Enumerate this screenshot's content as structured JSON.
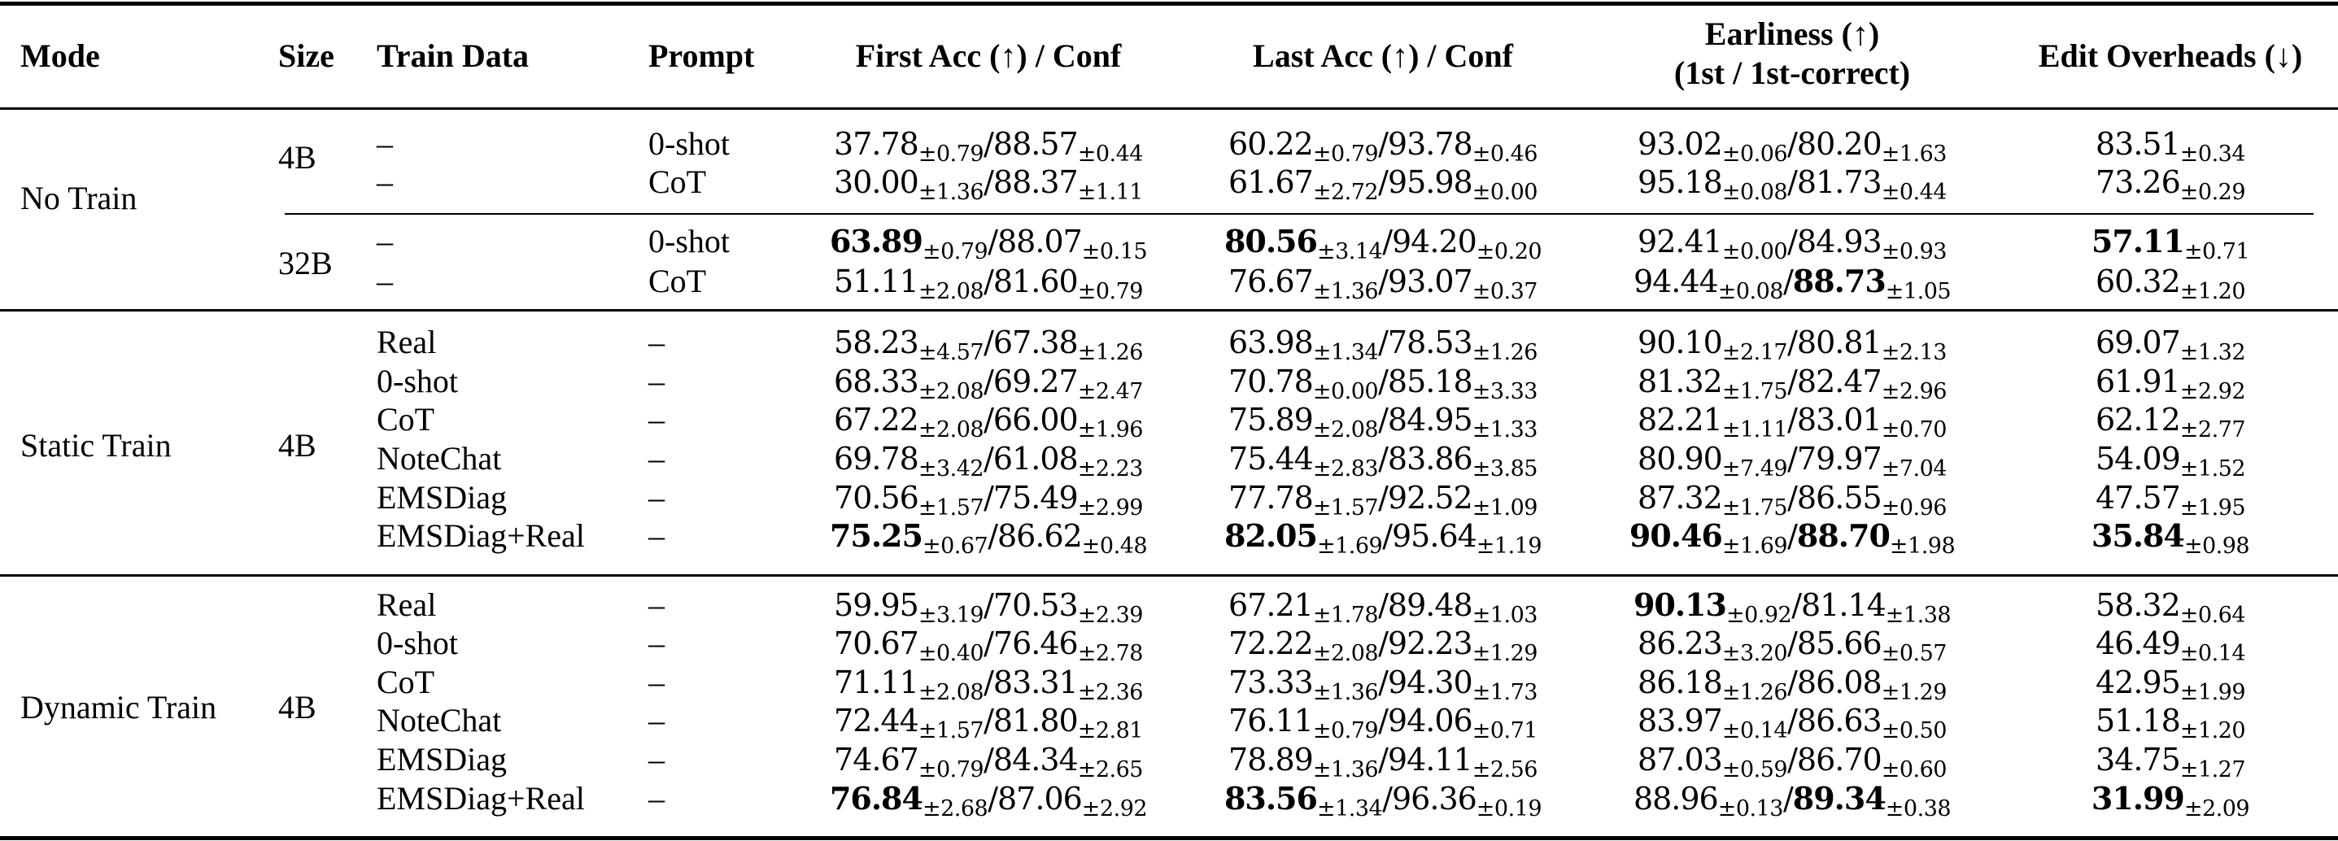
{
  "table": {
    "headers": {
      "mode": "Mode",
      "size": "Size",
      "train_data": "Train Data",
      "prompt": "Prompt",
      "first_acc": "First Acc (↑) / Conf",
      "last_acc": "Last Acc (↑) / Conf",
      "earliness_line1": "Earliness (↑)",
      "earliness_line2": "(1st / 1st-correct)",
      "edit_overheads": "Edit Overheads (↓)"
    },
    "groups": [
      {
        "mode": "No Train",
        "sizes": [
          "4B",
          "32B"
        ]
      },
      {
        "mode": "Static Train",
        "sizes": [
          "4B"
        ]
      },
      {
        "mode": "Dynamic Train",
        "sizes": [
          "4B"
        ]
      }
    ],
    "rows": [
      {
        "group": "No Train",
        "size": "4B",
        "train_data": "–",
        "prompt": "0-shot",
        "first_acc": {
          "v": "37.78",
          "s": "±0.79",
          "bold": false
        },
        "first_conf": {
          "v": "88.57",
          "s": "±0.44",
          "bold": false
        },
        "last_acc": {
          "v": "60.22",
          "s": "±0.79",
          "bold": false
        },
        "last_conf": {
          "v": "93.78",
          "s": "±0.46",
          "bold": false
        },
        "early_1st": {
          "v": "93.02",
          "s": "±0.06",
          "bold": false
        },
        "early_1st_correct": {
          "v": "80.20",
          "s": "±1.63",
          "bold": false
        },
        "edit": {
          "v": "83.51",
          "s": "±0.34",
          "bold": false
        }
      },
      {
        "group": "No Train",
        "size": "4B",
        "train_data": "–",
        "prompt": "CoT",
        "first_acc": {
          "v": "30.00",
          "s": "±1.36",
          "bold": false
        },
        "first_conf": {
          "v": "88.37",
          "s": "±1.11",
          "bold": false
        },
        "last_acc": {
          "v": "61.67",
          "s": "±2.72",
          "bold": false
        },
        "last_conf": {
          "v": "95.98",
          "s": "±0.00",
          "bold": false
        },
        "early_1st": {
          "v": "95.18",
          "s": "±0.08",
          "bold": false
        },
        "early_1st_correct": {
          "v": "81.73",
          "s": "±0.44",
          "bold": false
        },
        "edit": {
          "v": "73.26",
          "s": "±0.29",
          "bold": false
        }
      },
      {
        "group": "No Train",
        "size": "32B",
        "train_data": "–",
        "prompt": "0-shot",
        "first_acc": {
          "v": "63.89",
          "s": "±0.79",
          "bold": true
        },
        "first_conf": {
          "v": "88.07",
          "s": "±0.15",
          "bold": false
        },
        "last_acc": {
          "v": "80.56",
          "s": "±3.14",
          "bold": true
        },
        "last_conf": {
          "v": "94.20",
          "s": "±0.20",
          "bold": false
        },
        "early_1st": {
          "v": "92.41",
          "s": "±0.00",
          "bold": false
        },
        "early_1st_correct": {
          "v": "84.93",
          "s": "±0.93",
          "bold": false
        },
        "edit": {
          "v": "57.11",
          "s": "±0.71",
          "bold": true
        }
      },
      {
        "group": "No Train",
        "size": "32B",
        "train_data": "–",
        "prompt": "CoT",
        "first_acc": {
          "v": "51.11",
          "s": "±2.08",
          "bold": false
        },
        "first_conf": {
          "v": "81.60",
          "s": "±0.79",
          "bold": false
        },
        "last_acc": {
          "v": "76.67",
          "s": "±1.36",
          "bold": false
        },
        "last_conf": {
          "v": "93.07",
          "s": "±0.37",
          "bold": false
        },
        "early_1st": {
          "v": "94.44",
          "s": "±0.08",
          "bold": false
        },
        "early_1st_correct": {
          "v": "88.73",
          "s": "±1.05",
          "bold": true
        },
        "edit": {
          "v": "60.32",
          "s": "±1.20",
          "bold": false
        }
      },
      {
        "group": "Static Train",
        "size": "4B",
        "train_data": "Real",
        "prompt": "–",
        "first_acc": {
          "v": "58.23",
          "s": "±4.57",
          "bold": false
        },
        "first_conf": {
          "v": "67.38",
          "s": "±1.26",
          "bold": false
        },
        "last_acc": {
          "v": "63.98",
          "s": "±1.34",
          "bold": false
        },
        "last_conf": {
          "v": "78.53",
          "s": "±1.26",
          "bold": false
        },
        "early_1st": {
          "v": "90.10",
          "s": "±2.17",
          "bold": false
        },
        "early_1st_correct": {
          "v": "80.81",
          "s": "±2.13",
          "bold": false
        },
        "edit": {
          "v": "69.07",
          "s": "±1.32",
          "bold": false
        }
      },
      {
        "group": "Static Train",
        "size": "4B",
        "train_data": "0-shot",
        "prompt": "–",
        "first_acc": {
          "v": "68.33",
          "s": "±2.08",
          "bold": false
        },
        "first_conf": {
          "v": "69.27",
          "s": "±2.47",
          "bold": false
        },
        "last_acc": {
          "v": "70.78",
          "s": "±0.00",
          "bold": false
        },
        "last_conf": {
          "v": "85.18",
          "s": "±3.33",
          "bold": false
        },
        "early_1st": {
          "v": "81.32",
          "s": "±1.75",
          "bold": false
        },
        "early_1st_correct": {
          "v": "82.47",
          "s": "±2.96",
          "bold": false
        },
        "edit": {
          "v": "61.91",
          "s": "±2.92",
          "bold": false
        }
      },
      {
        "group": "Static Train",
        "size": "4B",
        "train_data": "CoT",
        "prompt": "–",
        "first_acc": {
          "v": "67.22",
          "s": "±2.08",
          "bold": false
        },
        "first_conf": {
          "v": "66.00",
          "s": "±1.96",
          "bold": false
        },
        "last_acc": {
          "v": "75.89",
          "s": "±2.08",
          "bold": false
        },
        "last_conf": {
          "v": "84.95",
          "s": "±1.33",
          "bold": false
        },
        "early_1st": {
          "v": "82.21",
          "s": "±1.11",
          "bold": false
        },
        "early_1st_correct": {
          "v": "83.01",
          "s": "±0.70",
          "bold": false
        },
        "edit": {
          "v": "62.12",
          "s": "±2.77",
          "bold": false
        }
      },
      {
        "group": "Static Train",
        "size": "4B",
        "train_data": "NoteChat",
        "prompt": "–",
        "first_acc": {
          "v": "69.78",
          "s": "±3.42",
          "bold": false
        },
        "first_conf": {
          "v": "61.08",
          "s": "±2.23",
          "bold": false
        },
        "last_acc": {
          "v": "75.44",
          "s": "±2.83",
          "bold": false
        },
        "last_conf": {
          "v": "83.86",
          "s": "±3.85",
          "bold": false
        },
        "early_1st": {
          "v": "80.90",
          "s": "±7.49",
          "bold": false
        },
        "early_1st_correct": {
          "v": "79.97",
          "s": "±7.04",
          "bold": false
        },
        "edit": {
          "v": "54.09",
          "s": "±1.52",
          "bold": false
        }
      },
      {
        "group": "Static Train",
        "size": "4B",
        "train_data": "EMSDiag",
        "prompt": "–",
        "first_acc": {
          "v": "70.56",
          "s": "±1.57",
          "bold": false
        },
        "first_conf": {
          "v": "75.49",
          "s": "±2.99",
          "bold": false
        },
        "last_acc": {
          "v": "77.78",
          "s": "±1.57",
          "bold": false
        },
        "last_conf": {
          "v": "92.52",
          "s": "±1.09",
          "bold": false
        },
        "early_1st": {
          "v": "87.32",
          "s": "±1.75",
          "bold": false
        },
        "early_1st_correct": {
          "v": "86.55",
          "s": "±0.96",
          "bold": false
        },
        "edit": {
          "v": "47.57",
          "s": "±1.95",
          "bold": false
        }
      },
      {
        "group": "Static Train",
        "size": "4B",
        "train_data": "EMSDiag+Real",
        "prompt": "–",
        "first_acc": {
          "v": "75.25",
          "s": "±0.67",
          "bold": true
        },
        "first_conf": {
          "v": "86.62",
          "s": "±0.48",
          "bold": false
        },
        "last_acc": {
          "v": "82.05",
          "s": "±1.69",
          "bold": true
        },
        "last_conf": {
          "v": "95.64",
          "s": "±1.19",
          "bold": false
        },
        "early_1st": {
          "v": "90.46",
          "s": "±1.69",
          "bold": true
        },
        "early_1st_correct": {
          "v": "88.70",
          "s": "±1.98",
          "bold": true
        },
        "edit": {
          "v": "35.84",
          "s": "±0.98",
          "bold": true
        }
      },
      {
        "group": "Dynamic Train",
        "size": "4B",
        "train_data": "Real",
        "prompt": "–",
        "first_acc": {
          "v": "59.95",
          "s": "±3.19",
          "bold": false
        },
        "first_conf": {
          "v": "70.53",
          "s": "±2.39",
          "bold": false
        },
        "last_acc": {
          "v": "67.21",
          "s": "±1.78",
          "bold": false
        },
        "last_conf": {
          "v": "89.48",
          "s": "±1.03",
          "bold": false
        },
        "early_1st": {
          "v": "90.13",
          "s": "±0.92",
          "bold": true
        },
        "early_1st_correct": {
          "v": "81.14",
          "s": "±1.38",
          "bold": false
        },
        "edit": {
          "v": "58.32",
          "s": "±0.64",
          "bold": false
        }
      },
      {
        "group": "Dynamic Train",
        "size": "4B",
        "train_data": "0-shot",
        "prompt": "–",
        "first_acc": {
          "v": "70.67",
          "s": "±0.40",
          "bold": false
        },
        "first_conf": {
          "v": "76.46",
          "s": "±2.78",
          "bold": false
        },
        "last_acc": {
          "v": "72.22",
          "s": "±2.08",
          "bold": false
        },
        "last_conf": {
          "v": "92.23",
          "s": "±1.29",
          "bold": false
        },
        "early_1st": {
          "v": "86.23",
          "s": "±3.20",
          "bold": false
        },
        "early_1st_correct": {
          "v": "85.66",
          "s": "±0.57",
          "bold": false
        },
        "edit": {
          "v": "46.49",
          "s": "±0.14",
          "bold": false
        }
      },
      {
        "group": "Dynamic Train",
        "size": "4B",
        "train_data": "CoT",
        "prompt": "–",
        "first_acc": {
          "v": "71.11",
          "s": "±2.08",
          "bold": false
        },
        "first_conf": {
          "v": "83.31",
          "s": "±2.36",
          "bold": false
        },
        "last_acc": {
          "v": "73.33",
          "s": "±1.36",
          "bold": false
        },
        "last_conf": {
          "v": "94.30",
          "s": "±1.73",
          "bold": false
        },
        "early_1st": {
          "v": "86.18",
          "s": "±1.26",
          "bold": false
        },
        "early_1st_correct": {
          "v": "86.08",
          "s": "±1.29",
          "bold": false
        },
        "edit": {
          "v": "42.95",
          "s": "±1.99",
          "bold": false
        }
      },
      {
        "group": "Dynamic Train",
        "size": "4B",
        "train_data": "NoteChat",
        "prompt": "–",
        "first_acc": {
          "v": "72.44",
          "s": "±1.57",
          "bold": false
        },
        "first_conf": {
          "v": "81.80",
          "s": "±2.81",
          "bold": false
        },
        "last_acc": {
          "v": "76.11",
          "s": "±0.79",
          "bold": false
        },
        "last_conf": {
          "v": "94.06",
          "s": "±0.71",
          "bold": false
        },
        "early_1st": {
          "v": "83.97",
          "s": "±0.14",
          "bold": false
        },
        "early_1st_correct": {
          "v": "86.63",
          "s": "±0.50",
          "bold": false
        },
        "edit": {
          "v": "51.18",
          "s": "±1.20",
          "bold": false
        }
      },
      {
        "group": "Dynamic Train",
        "size": "4B",
        "train_data": "EMSDiag",
        "prompt": "–",
        "first_acc": {
          "v": "74.67",
          "s": "±0.79",
          "bold": false
        },
        "first_conf": {
          "v": "84.34",
          "s": "±2.65",
          "bold": false
        },
        "last_acc": {
          "v": "78.89",
          "s": "±1.36",
          "bold": false
        },
        "last_conf": {
          "v": "94.11",
          "s": "±2.56",
          "bold": false
        },
        "early_1st": {
          "v": "87.03",
          "s": "±0.59",
          "bold": false
        },
        "early_1st_correct": {
          "v": "86.70",
          "s": "±0.60",
          "bold": false
        },
        "edit": {
          "v": "34.75",
          "s": "±1.27",
          "bold": false
        }
      },
      {
        "group": "Dynamic Train",
        "size": "4B",
        "train_data": "EMSDiag+Real",
        "prompt": "–",
        "first_acc": {
          "v": "76.84",
          "s": "±2.68",
          "bold": true
        },
        "first_conf": {
          "v": "87.06",
          "s": "±2.92",
          "bold": false
        },
        "last_acc": {
          "v": "83.56",
          "s": "±1.34",
          "bold": true
        },
        "last_conf": {
          "v": "96.36",
          "s": "±0.19",
          "bold": false
        },
        "early_1st": {
          "v": "88.96",
          "s": "±0.13",
          "bold": false
        },
        "early_1st_correct": {
          "v": "89.34",
          "s": "±0.38",
          "bold": true
        },
        "edit": {
          "v": "31.99",
          "s": "±2.09",
          "bold": true
        }
      }
    ]
  }
}
